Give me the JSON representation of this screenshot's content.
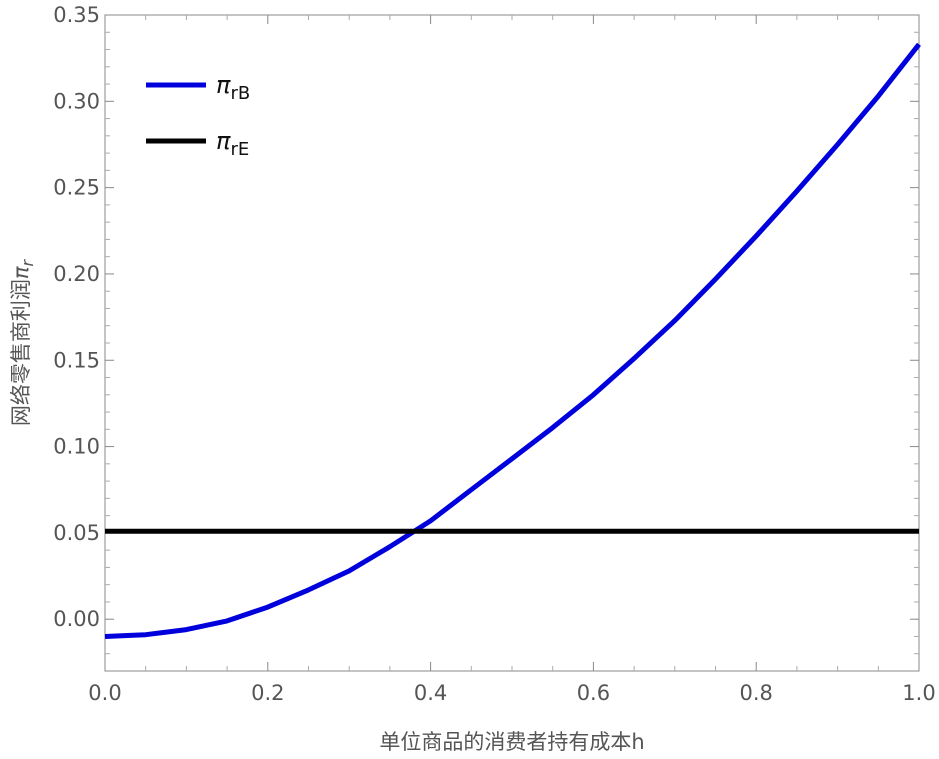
{
  "chart_data": {
    "type": "line",
    "title": "",
    "xlabel": "单位商品的消费者持有成本h",
    "ylabel": "网络零售商利润",
    "ylabel_symbol": "π",
    "ylabel_subscript": "r",
    "xlim": [
      0.0,
      1.0
    ],
    "ylim": [
      -0.03,
      0.35
    ],
    "x_ticks": [
      "0.0",
      "0.2",
      "0.4",
      "0.6",
      "0.8",
      "1.0"
    ],
    "y_ticks": [
      "0.00",
      "0.05",
      "0.10",
      "0.15",
      "0.20",
      "0.25",
      "0.30",
      "0.35"
    ],
    "grid": false,
    "legend_position": "top-left",
    "series": [
      {
        "name": "π_rB",
        "legend_symbol": "π",
        "legend_subscript": "rB",
        "color": "#0000dd",
        "x": [
          0.0,
          0.05,
          0.1,
          0.15,
          0.2,
          0.25,
          0.3,
          0.35,
          0.38,
          0.4,
          0.45,
          0.5,
          0.55,
          0.6,
          0.65,
          0.7,
          0.75,
          0.8,
          0.85,
          0.9,
          0.95,
          1.0
        ],
        "y": [
          -0.01,
          -0.009,
          -0.006,
          -0.001,
          0.007,
          0.017,
          0.028,
          0.042,
          0.051,
          0.057,
          0.075,
          0.093,
          0.111,
          0.13,
          0.151,
          0.173,
          0.197,
          0.222,
          0.248,
          0.275,
          0.303,
          0.333
        ]
      },
      {
        "name": "π_rE",
        "legend_symbol": "π",
        "legend_subscript": "rE",
        "color": "#000000",
        "x": [
          0.0,
          1.0
        ],
        "y": [
          0.051,
          0.051
        ]
      }
    ]
  }
}
